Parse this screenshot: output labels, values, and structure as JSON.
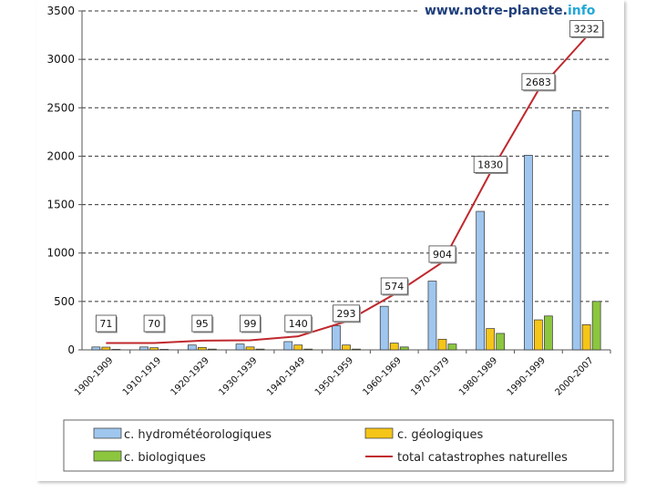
{
  "watermark": {
    "site": "www.notre-planete.",
    "tld": "info"
  },
  "chart_data": {
    "type": "bar",
    "categories": [
      "1900-1909",
      "1910-1919",
      "1920-1929",
      "1930-1939",
      "1940-1949",
      "1950-1959",
      "1960-1969",
      "1970-1979",
      "1980-1989",
      "1990-1999",
      "2000-2007"
    ],
    "ylim": [
      0,
      3500
    ],
    "yticks": [
      0,
      500,
      1000,
      1500,
      2000,
      2500,
      3000,
      3500
    ],
    "grid": true,
    "legend_position": "bottom",
    "series": [
      {
        "name": "c. hydrométéorologiques",
        "kind": "bar",
        "color": "#9fc6ee",
        "values": [
          30,
          30,
          50,
          60,
          85,
          250,
          450,
          710,
          1430,
          2010,
          2470
        ]
      },
      {
        "name": "c. géologiques",
        "kind": "bar",
        "color": "#f5c518",
        "values": [
          28,
          22,
          25,
          30,
          50,
          50,
          70,
          110,
          220,
          310,
          260
        ]
      },
      {
        "name": "c. biologiques",
        "kind": "bar",
        "color": "#8cc63f",
        "values": [
          5,
          5,
          8,
          8,
          8,
          8,
          30,
          60,
          170,
          350,
          500
        ]
      },
      {
        "name": "total catastrophes naturelles",
        "kind": "line",
        "color": "#c0282d",
        "values": [
          71,
          70,
          95,
          99,
          140,
          293,
          574,
          904,
          1830,
          2683,
          3232
        ]
      }
    ]
  }
}
